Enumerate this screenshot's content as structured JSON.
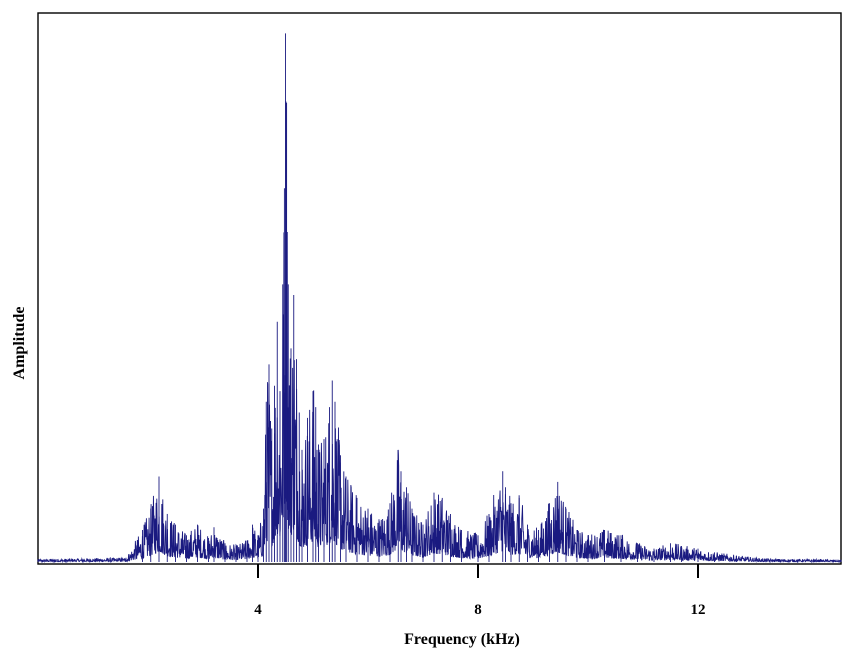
{
  "chart_data": {
    "type": "line",
    "title": "",
    "xlabel": "Frequency (kHz)",
    "ylabel": "Amplitude",
    "xlim": [
      0,
      14.6
    ],
    "ylim": [
      0,
      1
    ],
    "x_ticks": [
      4,
      8,
      12
    ],
    "x_tick_labels": [
      "4",
      "8",
      "12"
    ],
    "y_ticks_shown": false,
    "grid": false,
    "legend": "none",
    "line_color": "#1a1a80",
    "series": [
      {
        "values_note_free": true,
        "x": [
          0.0,
          1.6,
          1.9,
          2.05,
          2.2,
          2.35,
          2.5,
          2.7,
          2.9,
          3.1,
          3.2,
          3.4,
          3.6,
          3.8,
          3.9,
          4.0,
          4.1,
          4.15,
          4.2,
          4.25,
          4.3,
          4.35,
          4.4,
          4.45,
          4.48,
          4.5,
          4.52,
          4.55,
          4.6,
          4.65,
          4.7,
          4.75,
          4.8,
          4.9,
          5.0,
          5.05,
          5.1,
          5.2,
          5.3,
          5.35,
          5.4,
          5.5,
          5.6,
          5.8,
          6.0,
          6.2,
          6.4,
          6.55,
          6.6,
          6.7,
          6.8,
          7.0,
          7.2,
          7.35,
          7.5,
          7.7,
          8.0,
          8.2,
          8.45,
          8.5,
          8.6,
          8.75,
          8.9,
          9.1,
          9.3,
          9.45,
          9.6,
          9.8,
          10.0,
          10.3,
          10.6,
          10.9,
          11.2,
          11.5,
          11.7,
          12.0,
          12.3,
          12.7,
          13.2,
          14.6
        ],
        "y": [
          0.005,
          0.008,
          0.06,
          0.1,
          0.16,
          0.09,
          0.07,
          0.05,
          0.07,
          0.045,
          0.065,
          0.035,
          0.03,
          0.04,
          0.07,
          0.05,
          0.1,
          0.3,
          0.37,
          0.25,
          0.33,
          0.45,
          0.32,
          0.52,
          0.7,
          0.99,
          0.86,
          0.52,
          0.4,
          0.5,
          0.38,
          0.28,
          0.21,
          0.27,
          0.32,
          0.29,
          0.22,
          0.23,
          0.29,
          0.34,
          0.3,
          0.2,
          0.16,
          0.12,
          0.1,
          0.08,
          0.11,
          0.21,
          0.17,
          0.14,
          0.1,
          0.07,
          0.13,
          0.12,
          0.09,
          0.06,
          0.05,
          0.09,
          0.17,
          0.14,
          0.11,
          0.12,
          0.07,
          0.06,
          0.11,
          0.15,
          0.1,
          0.06,
          0.05,
          0.06,
          0.05,
          0.035,
          0.025,
          0.035,
          0.03,
          0.025,
          0.018,
          0.012,
          0.006,
          0.004
        ]
      }
    ]
  }
}
